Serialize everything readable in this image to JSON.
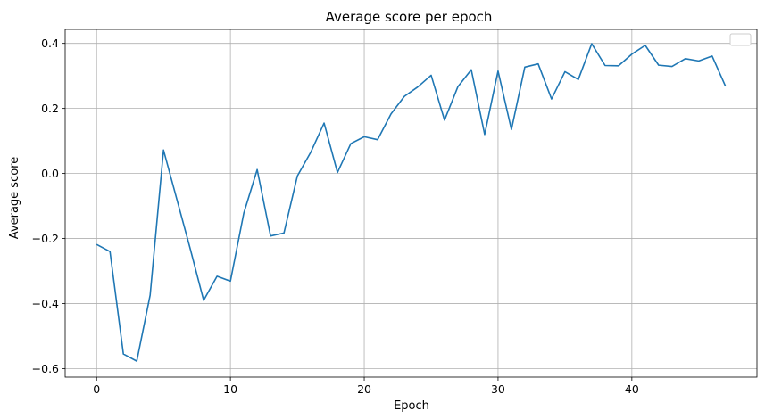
{
  "chart_data": {
    "type": "line",
    "title": "Average score per epoch",
    "xlabel": "Epoch",
    "ylabel": "Average score",
    "xlim": [
      -2.35,
      49.35
    ],
    "ylim": [
      -0.626,
      0.443
    ],
    "xticks": [
      0,
      10,
      20,
      30,
      40
    ],
    "xtick_labels": [
      "0",
      "10",
      "20",
      "30",
      "40"
    ],
    "yticks": [
      -0.6,
      -0.4,
      -0.2,
      0.0,
      0.2,
      0.4
    ],
    "ytick_labels": [
      "−0.6",
      "−0.4",
      "−0.2",
      "0.0",
      "0.2",
      "0.4"
    ],
    "grid": true,
    "legend": "top-right",
    "line_color": "#1f77b4",
    "series": [
      {
        "x": [
          0,
          1,
          2,
          3,
          4,
          5,
          6,
          7,
          8,
          9,
          10,
          11,
          12,
          13,
          14,
          15,
          16,
          17,
          18,
          19,
          20,
          21,
          22,
          23,
          24,
          25,
          26,
          27,
          28,
          29,
          30,
          31,
          32,
          33,
          34,
          35,
          36,
          37,
          38,
          39,
          40,
          41,
          42,
          43,
          44,
          45,
          46,
          47
        ],
        "values": [
          -0.218,
          -0.24,
          -0.555,
          -0.577,
          -0.374,
          0.072,
          -0.08,
          -0.232,
          -0.39,
          -0.316,
          -0.331,
          -0.122,
          0.012,
          -0.192,
          -0.183,
          -0.008,
          0.065,
          0.155,
          0.003,
          0.092,
          0.113,
          0.104,
          0.183,
          0.237,
          0.266,
          0.302,
          0.164,
          0.267,
          0.319,
          0.12,
          0.315,
          0.135,
          0.327,
          0.337,
          0.229,
          0.313,
          0.289,
          0.399,
          0.332,
          0.331,
          0.367,
          0.394,
          0.333,
          0.329,
          0.353,
          0.346,
          0.361,
          0.268
        ]
      }
    ]
  }
}
